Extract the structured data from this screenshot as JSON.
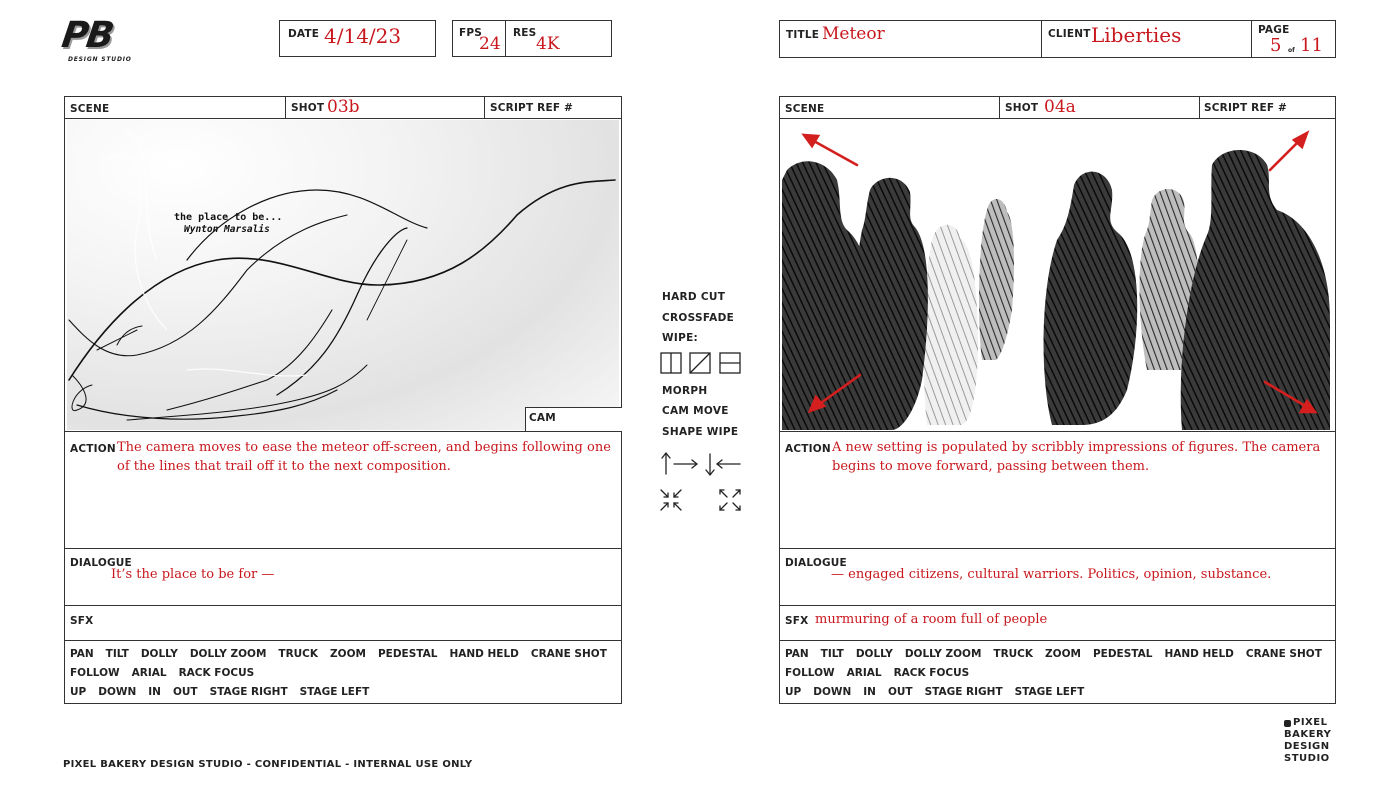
{
  "logo": {
    "letters": "PB",
    "sub": "DESIGN STUDIO"
  },
  "header_left": {
    "date_label": "DATE",
    "date_value": "4/14/23",
    "fps_label": "FPS",
    "fps_value": "24",
    "res_label": "RES",
    "res_value": "4K"
  },
  "header_right": {
    "title_label": "TITLE",
    "title_value": "Meteor",
    "client_label": "CLIENT",
    "client_value": "Liberties",
    "page_label": "PAGE",
    "page_current": "5",
    "page_of": "of",
    "page_total": "11"
  },
  "panel_left": {
    "scene_label": "SCENE",
    "shot_label": "SHOT",
    "shot_value": "03b",
    "script_label": "SCRIPT REF #",
    "frame_quote": "the place to be...",
    "frame_author": "Wynton Marsalis",
    "cam_label": "CAM",
    "action_label": "ACTION",
    "action_text": "The camera moves to ease the meteor off-screen, and begins following one of the lines that trail off it to the next composition.",
    "dialogue_label": "DIALOGUE",
    "dialogue_text": "It’s the place to be for —",
    "sfx_label": "SFX",
    "sfx_text": ""
  },
  "panel_right": {
    "scene_label": "SCENE",
    "shot_label": "SHOT",
    "shot_value": "04a",
    "script_label": "SCRIPT REF #",
    "action_label": "ACTION",
    "action_text": "A new setting is populated by scribbly impressions of figures. The camera begins to move forward, passing between them.",
    "dialogue_label": "DIALOGUE",
    "dialogue_text": "— engaged citizens, cultural warriors. Politics, opinion, substance.",
    "sfx_label": "SFX",
    "sfx_text": "murmuring of a room full of people"
  },
  "camera_moves": {
    "row1": [
      "PAN",
      "TILT",
      "DOLLY",
      "DOLLY ZOOM",
      "TRUCK",
      "ZOOM",
      "PEDESTAL",
      "HAND HELD",
      "CRANE SHOT"
    ],
    "row2": [
      "FOLLOW",
      "ARIAL",
      "RACK FOCUS"
    ],
    "row3": [
      "UP",
      "DOWN",
      "IN",
      "OUT",
      "STAGE RIGHT",
      "STAGE LEFT"
    ]
  },
  "transitions": {
    "hard_cut": "HARD CUT",
    "crossfade": "CROSSFADE",
    "wipe": "WIPE:",
    "morph": "MORPH",
    "cam_move": "CAM MOVE",
    "shape_wipe": "SHAPE WIPE"
  },
  "footer": {
    "confidential": "PIXEL BAKERY DESIGN STUDIO - CONFIDENTIAL - INTERNAL USE ONLY",
    "brand_lines": [
      "PIXEL",
      "BAKERY",
      "DESIGN",
      "STUDIO"
    ]
  },
  "colors": {
    "accent_red": "#c8171d",
    "border": "#333333"
  }
}
